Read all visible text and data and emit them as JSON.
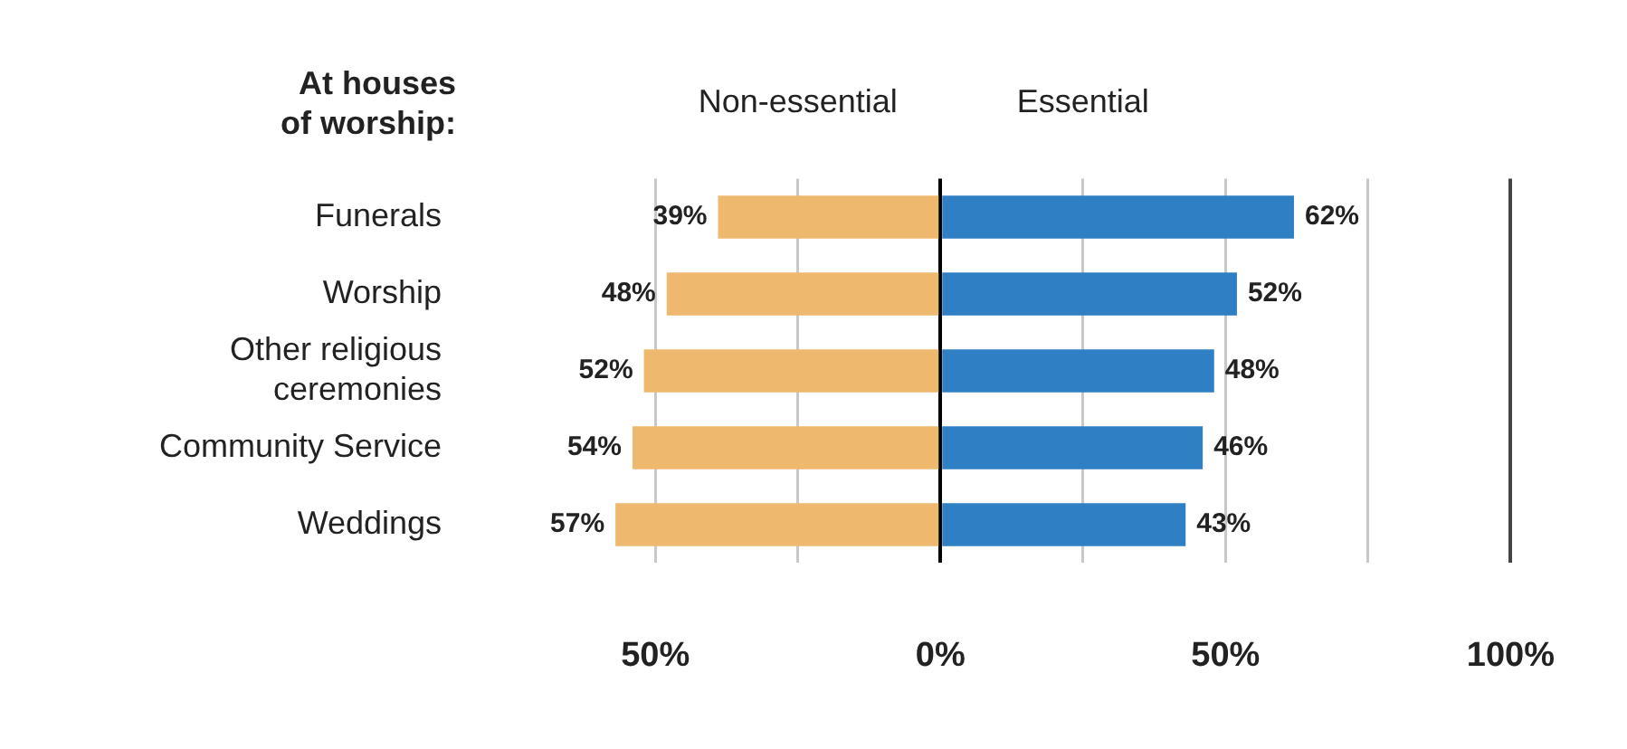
{
  "chart_data": {
    "type": "bar",
    "orientation": "horizontal",
    "ylabel": "At houses of worship:",
    "categories": [
      "Funerals",
      "Worship",
      "Other religious ceremonies",
      "Community Service",
      "Weddings"
    ],
    "series": [
      {
        "name": "Non-essential",
        "color": "#eeb96e",
        "base": [
          -39,
          -48,
          -52,
          -54,
          -57
        ],
        "values": [
          39,
          48,
          52,
          54,
          57
        ],
        "value_labels": [
          "39%",
          "48%",
          "52%",
          "54%",
          "57%"
        ]
      },
      {
        "name": "Essential",
        "color": "#2f7fc5",
        "values": [
          62,
          52,
          48,
          46,
          43
        ],
        "value_labels": [
          "62%",
          "52%",
          "48%",
          "46%",
          "43%"
        ]
      }
    ],
    "xlim": [
      -57,
      100
    ],
    "xticks": [
      {
        "value": -50,
        "label": "50%"
      },
      {
        "value": -25,
        "label": null
      },
      {
        "value": 0,
        "label": "0%"
      },
      {
        "value": 25,
        "label": null
      },
      {
        "value": 50,
        "label": "50%"
      },
      {
        "value": 75,
        "label": null
      },
      {
        "value": 100,
        "label": "100%"
      }
    ],
    "grid": "x",
    "legend": "top"
  }
}
